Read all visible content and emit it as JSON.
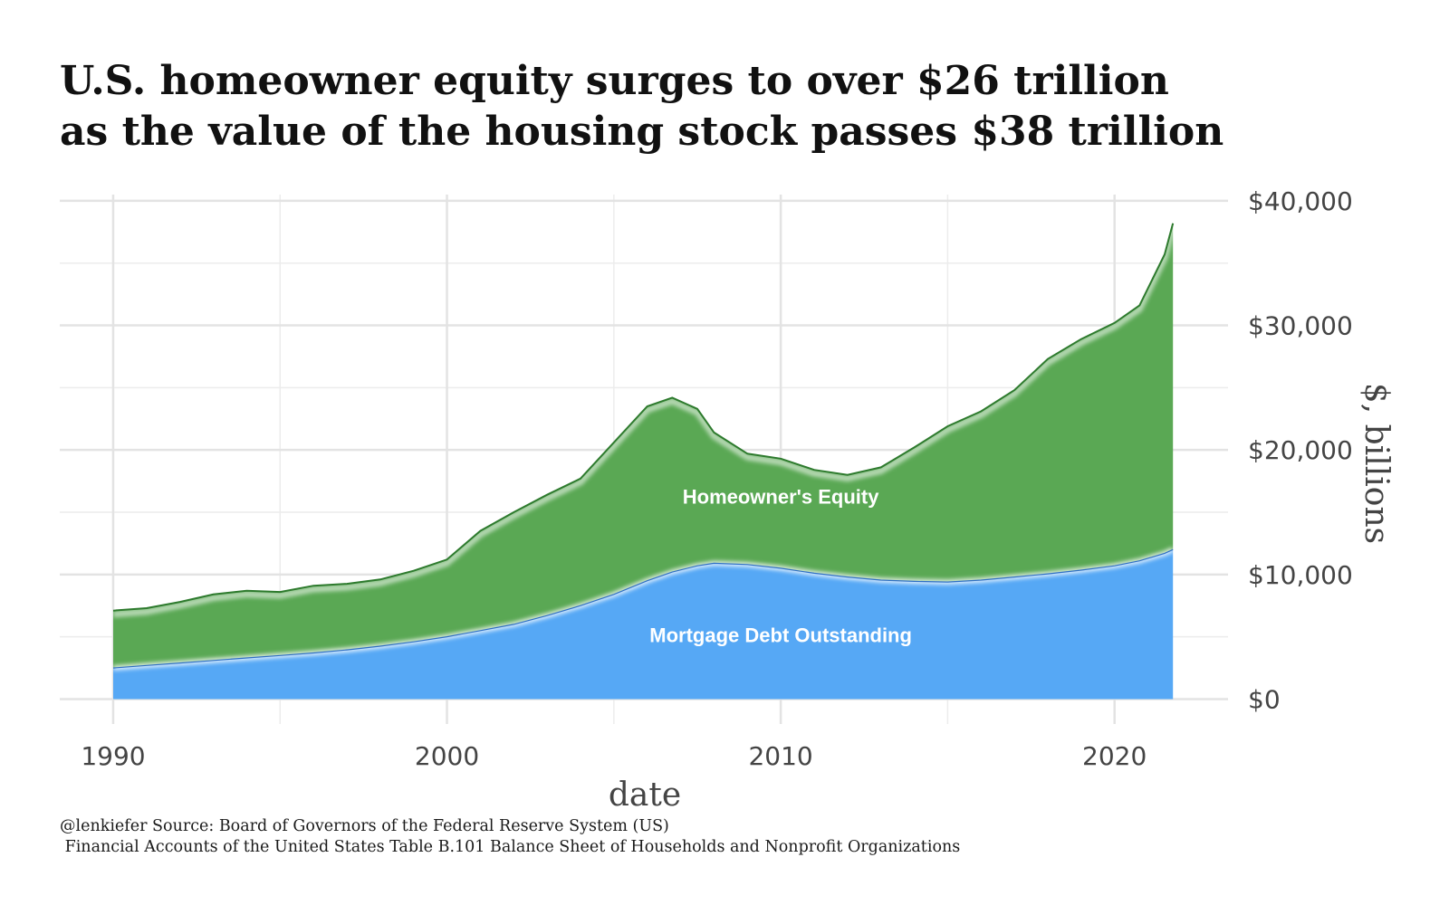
{
  "chart_data": {
    "type": "area",
    "title": "U.S. homeowner equity surges to over $26 trillion",
    "subtitle": "as the value of the housing stock passes $38 trillion",
    "xlabel": "date",
    "ylabel": "$, billions",
    "xlim": [
      1988.4,
      2023.4
    ],
    "ylim": [
      -2000,
      40500
    ],
    "x_ticks": [
      1990,
      2000,
      2010,
      2020
    ],
    "x_tick_labels": [
      "1990",
      "2000",
      "2010",
      "2020"
    ],
    "y_ticks": [
      0,
      10000,
      20000,
      30000,
      40000
    ],
    "y_tick_labels": [
      "$0",
      "$10,000",
      "$20,000",
      "$30,000",
      "$40,000"
    ],
    "y_axis_position": "right",
    "grid": true,
    "area_labels": [
      {
        "text": "Homeowner's Equity",
        "x": 2010,
        "y": 16100
      },
      {
        "text": "Mortgage Debt Outstanding",
        "x": 2010,
        "y": 5000
      }
    ],
    "x": [
      1990,
      1991,
      1992,
      1993,
      1994,
      1995,
      1996,
      1997,
      1998,
      1999,
      2000,
      2001,
      2002,
      2003,
      2004,
      2005,
      2006,
      2006.75,
      2007.5,
      2008,
      2009,
      2010,
      2011,
      2012,
      2013,
      2014,
      2015,
      2016,
      2017,
      2018,
      2019,
      2020,
      2020.75,
      2021.5,
      2021.75
    ],
    "series": [
      {
        "name": "Mortgage Debt Outstanding",
        "color": "#56a8f5",
        "values": [
          2500,
          2700,
          2900,
          3100,
          3300,
          3500,
          3700,
          3950,
          4250,
          4600,
          5000,
          5500,
          6000,
          6700,
          7500,
          8400,
          9500,
          10200,
          10700,
          10900,
          10800,
          10500,
          10100,
          9800,
          9550,
          9450,
          9400,
          9550,
          9800,
          10050,
          10350,
          10700,
          11100,
          11700,
          12000
        ]
      },
      {
        "name": "Homeowner's Equity",
        "color": "#5aa854",
        "values": [
          4600,
          4600,
          4900,
          5300,
          5400,
          5100,
          5400,
          5300,
          5350,
          5700,
          6200,
          8000,
          9000,
          9700,
          10200,
          12200,
          14000,
          14000,
          12600,
          10500,
          8900,
          8800,
          8300,
          8200,
          9050,
          10750,
          12500,
          13550,
          15000,
          17250,
          18550,
          19500,
          20500,
          24000,
          26200
        ]
      }
    ],
    "total_line_color": "#2d7a2d"
  },
  "caption": {
    "line1": "@lenkiefer Source: Board of Governors of the Federal Reserve System (US)",
    "line2": " Financial Accounts of the United States Table B.101 Balance Sheet of Households and Nonprofit Organizations"
  }
}
